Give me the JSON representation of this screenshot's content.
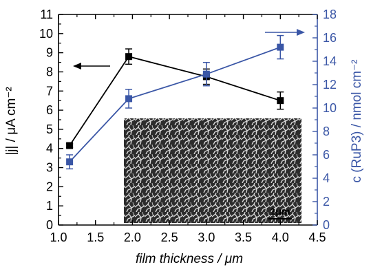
{
  "chart_data": {
    "type": "line",
    "xlabel": "film thickness / μm",
    "ylabel_left": "|j| / μA cm⁻²",
    "ylabel_right": "c (RuP3)  / nmol cm⁻²",
    "xlim": [
      1.0,
      4.5
    ],
    "ylim_left": [
      0,
      11
    ],
    "ylim_right": [
      0,
      18
    ],
    "x_ticks": [
      "1.0",
      "1.5",
      "2.0",
      "2.5",
      "3.0",
      "3.5",
      "4.0",
      "4.5"
    ],
    "y_left_ticks": [
      "0",
      "1",
      "2",
      "3",
      "4",
      "5",
      "6",
      "7",
      "8",
      "9",
      "10",
      "11"
    ],
    "y_right_ticks": [
      "0",
      "2",
      "4",
      "6",
      "8",
      "10",
      "12",
      "14",
      "16",
      "18"
    ],
    "grid": false,
    "legend": "none",
    "series": [
      {
        "axis": "left",
        "color": "#000000",
        "marker": "square",
        "x": [
          1.15,
          1.95,
          3.0,
          4.0
        ],
        "y": [
          4.15,
          8.8,
          7.75,
          6.5
        ],
        "err": [
          0.1,
          0.4,
          0.4,
          0.45
        ]
      },
      {
        "axis": "right",
        "color": "#3a56a6",
        "marker": "square",
        "x": [
          1.15,
          1.95,
          3.0,
          4.0
        ],
        "y": [
          5.4,
          10.8,
          12.9,
          15.2
        ],
        "err": [
          0.6,
          0.8,
          1.0,
          1.0
        ]
      }
    ],
    "annotations": [
      {
        "type": "arrow",
        "direction": "left",
        "axis_side": "left"
      },
      {
        "type": "arrow",
        "direction": "right",
        "axis_side": "right"
      }
    ],
    "inset": {
      "type": "SEM micrograph",
      "scale_bar_label": "1μm"
    }
  },
  "colors": {
    "left_axis": "#000000",
    "right_axis": "#3a56a6"
  }
}
